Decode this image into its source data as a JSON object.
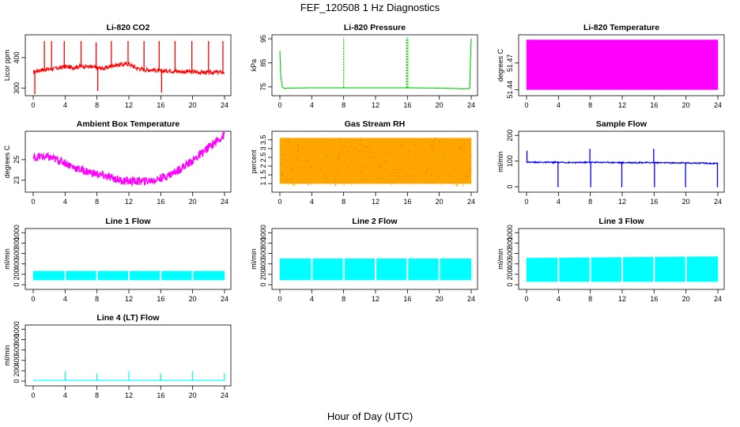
{
  "figure": {
    "title": "FEF_120508  1 Hz Diagnostics",
    "xlabel": "Hour of Day (UTC)"
  },
  "chart_data": [
    {
      "type": "line",
      "title": "Li-820 CO2",
      "ylabel": "Licor ppm",
      "color": "#ff0000",
      "xlim": [
        0,
        24
      ],
      "ylim": [
        280,
        470
      ],
      "xticks": [
        0,
        4,
        8,
        12,
        16,
        20,
        24
      ],
      "yticks": [
        300,
        400
      ],
      "series": [
        {
          "x": [
            0,
            0.3,
            1,
            2,
            3,
            4,
            5,
            6,
            7,
            8,
            9,
            10,
            11,
            12,
            13,
            14,
            15,
            16,
            17,
            18,
            19,
            20,
            21,
            22,
            23,
            24
          ],
          "y": [
            350,
            355,
            360,
            362,
            365,
            370,
            368,
            372,
            370,
            366,
            365,
            375,
            377,
            380,
            365,
            360,
            360,
            355,
            358,
            355,
            354,
            353,
            352,
            351,
            352,
            352
          ],
          "spikes": [
            {
              "x": 0.2,
              "low": 280
            },
            {
              "x": 1.4,
              "high": 455
            },
            {
              "x": 2.3,
              "high": 455
            },
            {
              "x": 3.9,
              "high": 455
            },
            {
              "x": 6.0,
              "high": 455
            },
            {
              "x": 7.9,
              "high": 450
            },
            {
              "x": 8.1,
              "low": 290
            },
            {
              "x": 9.8,
              "high": 455
            },
            {
              "x": 11.9,
              "high": 455
            },
            {
              "x": 13.9,
              "high": 455
            },
            {
              "x": 15.8,
              "high": 455
            },
            {
              "x": 16.1,
              "low": 285
            },
            {
              "x": 17.8,
              "high": 455
            },
            {
              "x": 19.9,
              "high": 455
            },
            {
              "x": 22.0,
              "high": 455
            },
            {
              "x": 23.8,
              "high": 455
            }
          ]
        }
      ]
    },
    {
      "type": "line",
      "title": "Li-820 Pressure",
      "ylabel": "kPa",
      "color": "#00cc00",
      "xlim": [
        0,
        24
      ],
      "ylim": [
        72,
        96
      ],
      "xticks": [
        0,
        4,
        8,
        12,
        16,
        20,
        24
      ],
      "yticks": [
        75,
        85,
        95
      ],
      "series": [
        {
          "x": [
            0,
            0.1,
            0.3,
            0.6,
            1,
            4,
            8,
            12,
            16,
            20,
            23,
            23.8,
            24
          ],
          "y": [
            90,
            80,
            75,
            74.3,
            74.5,
            74.6,
            74.6,
            74.6,
            74.6,
            74.5,
            74.2,
            74.3,
            95
          ],
          "spikes": [
            {
              "x": 8.0,
              "high": 95.5
            },
            {
              "x": 15.9,
              "high": 95.5
            },
            {
              "x": 16.05,
              "high": 95.5
            }
          ]
        }
      ]
    },
    {
      "type": "area",
      "title": "Li-820 Temperature",
      "ylabel": "degrees C",
      "color": "#ff00ff",
      "xlim": [
        0,
        24
      ],
      "ylim": [
        51.435,
        51.5
      ],
      "xticks": [
        0,
        4,
        8,
        12,
        16,
        20,
        24
      ],
      "yticks": [
        51.44,
        51.47
      ],
      "series": [
        {
          "x": [
            0,
            24
          ],
          "low": [
            51.44,
            51.44
          ],
          "high": [
            51.496,
            51.496
          ]
        }
      ]
    },
    {
      "type": "line",
      "title": "Ambient Box Temperature",
      "ylabel": "degrees C",
      "color": "#ff00ff",
      "xlim": [
        0,
        24
      ],
      "ylim": [
        22.0,
        27.6
      ],
      "xticks": [
        0,
        4,
        8,
        12,
        16,
        20,
        24
      ],
      "yticks": [
        23,
        25
      ],
      "series": [
        {
          "x": [
            0,
            1,
            2,
            3,
            4,
            5,
            6,
            7,
            8,
            9,
            10,
            11,
            12,
            13,
            14,
            15,
            16,
            17,
            18,
            19,
            20,
            21,
            22,
            23,
            24
          ],
          "y": [
            25.2,
            25.3,
            25.2,
            25.0,
            24.7,
            24.3,
            24.0,
            23.8,
            23.6,
            23.4,
            23.2,
            23.0,
            22.9,
            22.9,
            22.9,
            23.0,
            23.2,
            23.5,
            23.9,
            24.4,
            24.9,
            25.5,
            26.2,
            26.8,
            27.4
          ],
          "noise": 0.4
        }
      ]
    },
    {
      "type": "area",
      "title": "Gas Stream RH",
      "ylabel": "percent",
      "color": "#ffa500",
      "xlim": [
        0,
        24
      ],
      "ylim": [
        0.6,
        3.9
      ],
      "xticks": [
        0,
        4,
        8,
        12,
        16,
        20,
        24
      ],
      "yticks": [
        1.0,
        1.5,
        2.0,
        2.5,
        3.0,
        3.5
      ],
      "series": [
        {
          "x": [
            0,
            24
          ],
          "low": [
            1.0,
            1.0
          ],
          "high": [
            3.6,
            3.6
          ],
          "dips_to": 0.8
        }
      ]
    },
    {
      "type": "line",
      "title": "Sample Flow",
      "ylabel": "ml/min",
      "color": "#0000ff",
      "xlim": [
        0,
        24
      ],
      "ylim": [
        -15,
        210
      ],
      "xticks": [
        0,
        4,
        8,
        12,
        16,
        20,
        24
      ],
      "yticks": [
        0,
        100,
        200
      ],
      "series": [
        {
          "x": [
            0,
            2,
            4,
            6,
            8,
            10,
            12,
            14,
            16,
            18,
            20,
            22,
            24
          ],
          "y": [
            96,
            95,
            95,
            94,
            95,
            95,
            94,
            94,
            94,
            93,
            93,
            92,
            90
          ],
          "spikes": [
            {
              "x": 0.05,
              "high": 140
            },
            {
              "x": 3.95,
              "low": -2
            },
            {
              "x": 7.95,
              "high": 148
            },
            {
              "x": 8.05,
              "low": -2
            },
            {
              "x": 11.95,
              "low": -2
            },
            {
              "x": 15.95,
              "high": 148
            },
            {
              "x": 16.05,
              "low": -2
            },
            {
              "x": 19.95,
              "low": -2
            },
            {
              "x": 23.95,
              "low": -2
            }
          ]
        }
      ]
    },
    {
      "type": "area",
      "title": "Line 1 Flow",
      "ylabel": "ml/min",
      "color": "#00ffff",
      "xlim": [
        0,
        24
      ],
      "ylim": [
        -60,
        1050
      ],
      "xticks": [
        0,
        4,
        8,
        12,
        16,
        20,
        24
      ],
      "yticks": [
        0,
        200,
        400,
        600,
        800,
        1000
      ],
      "series": [
        {
          "x": [
            0,
            24
          ],
          "low": [
            90,
            90
          ],
          "high": [
            260,
            260
          ],
          "gaps": [
            4,
            8,
            12,
            16,
            20
          ]
        }
      ]
    },
    {
      "type": "area",
      "title": "Line 2 Flow",
      "ylabel": "ml/min",
      "color": "#00ffff",
      "xlim": [
        0,
        24
      ],
      "ylim": [
        -60,
        1050
      ],
      "xticks": [
        0,
        4,
        8,
        12,
        16,
        20,
        24
      ],
      "yticks": [
        0,
        200,
        400,
        600,
        800,
        1000
      ],
      "series": [
        {
          "x": [
            0,
            24
          ],
          "low": [
            90,
            90
          ],
          "high": [
            500,
            500
          ],
          "gaps": [
            4,
            8,
            12,
            16,
            20
          ]
        }
      ]
    },
    {
      "type": "area",
      "title": "Line 3 Flow",
      "ylabel": "ml/min",
      "color": "#00ffff",
      "xlim": [
        0,
        24
      ],
      "ylim": [
        -60,
        1050
      ],
      "xticks": [
        0,
        4,
        8,
        12,
        16,
        20,
        24
      ],
      "yticks": [
        0,
        200,
        400,
        600,
        800,
        1000
      ],
      "series": [
        {
          "x": [
            0,
            24
          ],
          "low": [
            60,
            60
          ],
          "high": [
            510,
            540
          ],
          "gaps": [
            4,
            8,
            12,
            16,
            20
          ]
        }
      ]
    },
    {
      "type": "line",
      "title": "Line 4 (LT) Flow",
      "ylabel": "ml/min",
      "color": "#00ffff",
      "xlim": [
        0,
        24
      ],
      "ylim": [
        -60,
        1050
      ],
      "xticks": [
        0,
        4,
        8,
        12,
        16,
        20,
        24
      ],
      "yticks": [
        0,
        200,
        400,
        600,
        800,
        1000
      ],
      "series": [
        {
          "x": [
            0,
            24
          ],
          "y": [
            15,
            15
          ],
          "spikes": [
            {
              "x": 4.0,
              "high": 190
            },
            {
              "x": 8.0,
              "high": 150
            },
            {
              "x": 12.0,
              "high": 190
            },
            {
              "x": 16.0,
              "high": 150
            },
            {
              "x": 20.0,
              "high": 190
            },
            {
              "x": 24.0,
              "high": 150
            }
          ]
        }
      ]
    }
  ]
}
